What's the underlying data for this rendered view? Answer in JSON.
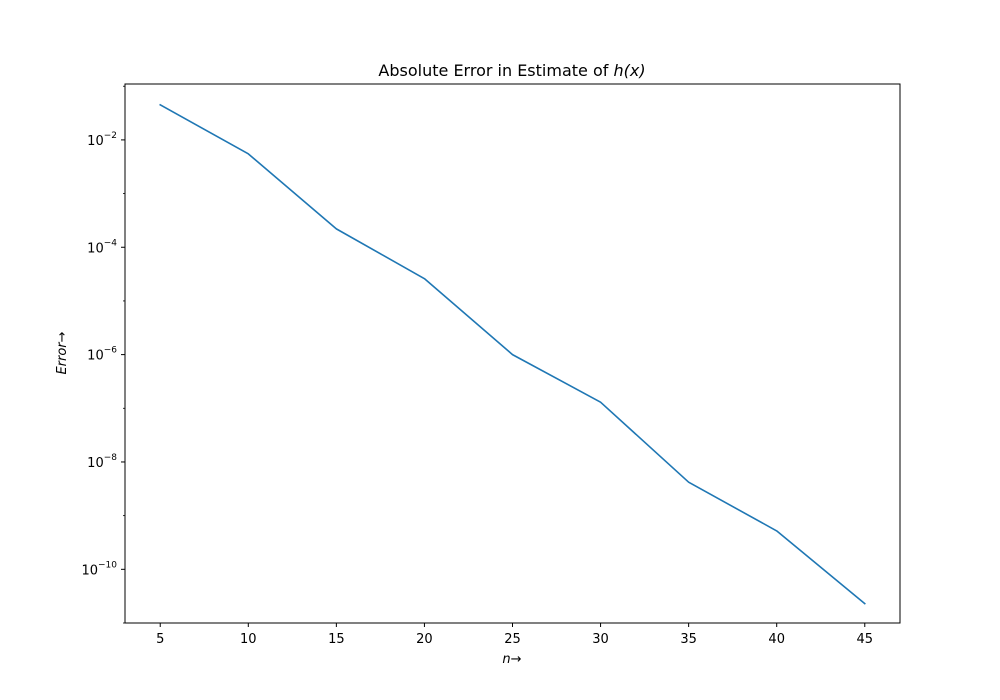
{
  "chart_data": {
    "type": "line",
    "title": "Absolute Error in Estimate of",
    "title_math": "h(x)",
    "xlabel": "n",
    "ylabel": "Error",
    "arrow": "→",
    "x": [
      5,
      10,
      15,
      20,
      25,
      30,
      35,
      40,
      45
    ],
    "series": [
      {
        "values": [
          0.045,
          0.0055,
          0.00022,
          2.6e-05,
          1e-06,
          1.3e-07,
          4.2e-09,
          5.2e-10,
          2.3e-11
        ],
        "color": "#1f77b4"
      }
    ],
    "xlim": [
      3,
      47
    ],
    "ylim": [
      1e-11,
      0.11
    ],
    "yscale": "log",
    "x_ticks": [
      5,
      10,
      15,
      20,
      25,
      30,
      35,
      40,
      45
    ],
    "y_ticks": [
      {
        "value": 0.01,
        "base": "10",
        "exp": "−2"
      },
      {
        "value": 0.0001,
        "base": "10",
        "exp": "−4"
      },
      {
        "value": 1e-06,
        "base": "10",
        "exp": "−6"
      },
      {
        "value": 1e-08,
        "base": "10",
        "exp": "−8"
      },
      {
        "value": 1e-10,
        "base": "10",
        "exp": "−10"
      }
    ],
    "grid": false,
    "legend": "none"
  }
}
